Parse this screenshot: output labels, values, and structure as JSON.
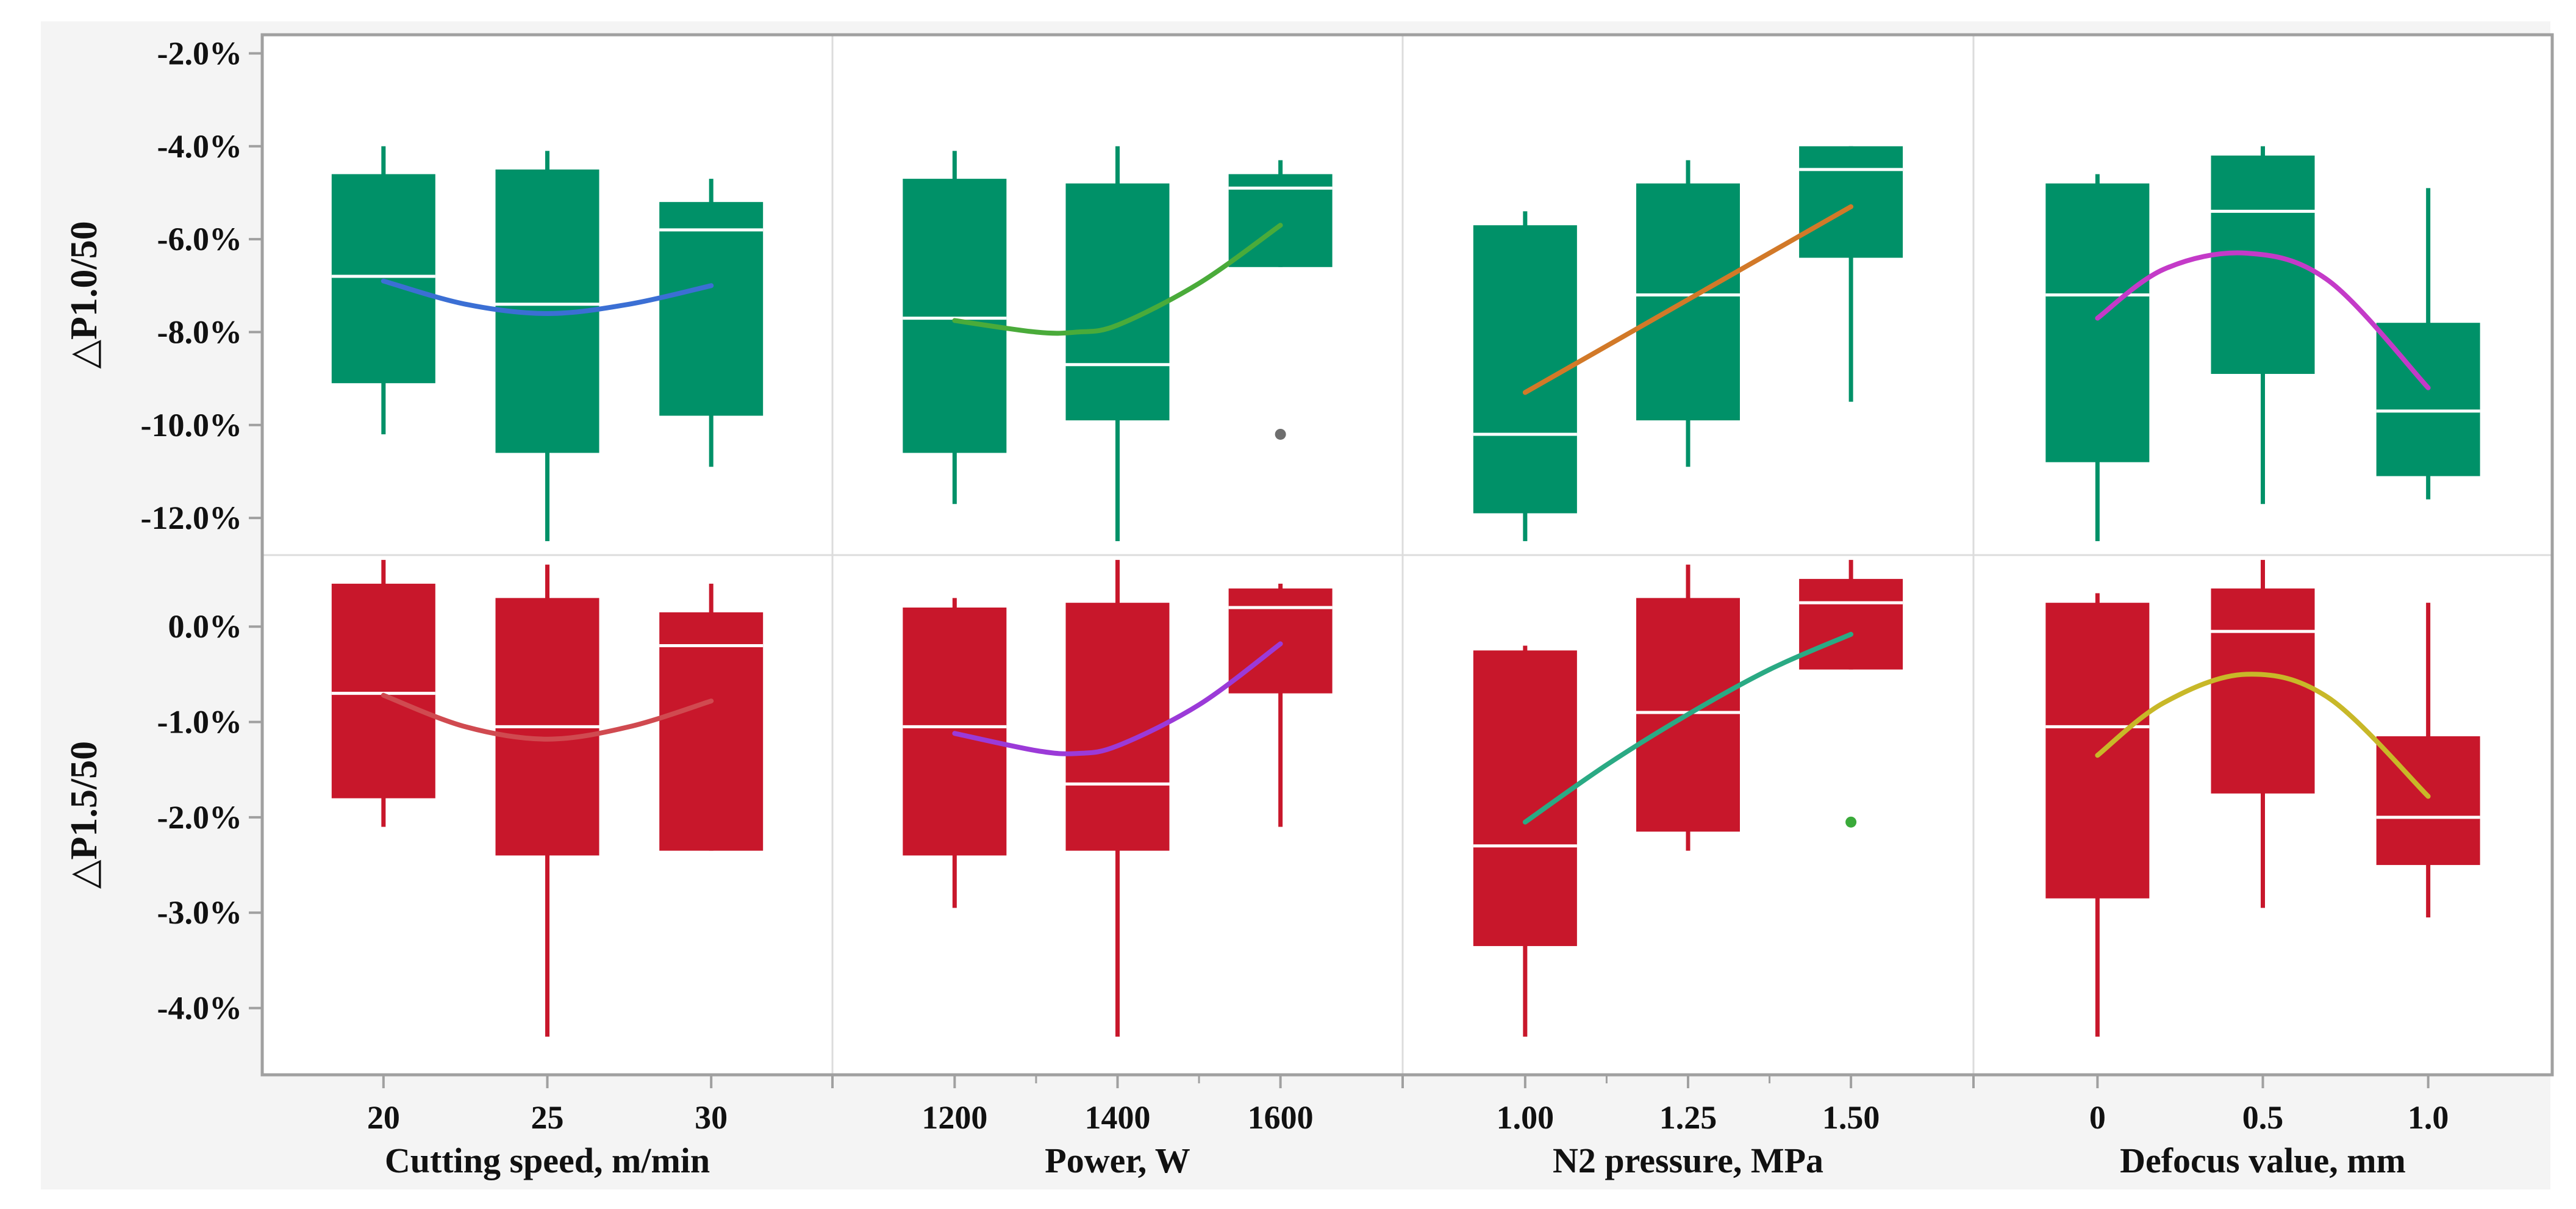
{
  "chart_data": {
    "type": "box",
    "title": "",
    "grid": false,
    "legend": "none",
    "colors": {
      "frame": "#a0a0a0",
      "divider": "#dcdcdc",
      "background_outer": "#f4f4f4",
      "background_plot": "#ffffff",
      "median": "#ffffff",
      "outlier_row1": "#6e6e6e",
      "outlier_row2": "#3aaa3a"
    },
    "rows": [
      {
        "ylabel": "△P1.0/50",
        "ylim": [
          -12.8,
          -1.6
        ],
        "yticks": [
          -2.0,
          -4.0,
          -6.0,
          -8.0,
          -10.0,
          -12.0
        ],
        "ytick_labels": [
          "-2.0%",
          "-4.0%",
          "-6.0%",
          "-8.0%",
          "-10.0%",
          "-12.0%"
        ],
        "box_color": "#009168"
      },
      {
        "ylabel": "△P1.5/50",
        "ylim": [
          -4.7,
          0.75
        ],
        "yticks": [
          0.0,
          -1.0,
          -2.0,
          -3.0,
          -4.0
        ],
        "ytick_labels": [
          "0.0%",
          "-1.0%",
          "-2.0%",
          "-3.0%",
          "-4.0%"
        ],
        "box_color": "#c8172b"
      }
    ],
    "columns": [
      {
        "xlabel": "Cutting speed, m/min",
        "categories": [
          "20",
          "25",
          "30"
        ],
        "x": [
          20,
          25,
          30
        ],
        "xlim": [
          16.3,
          33.7
        ],
        "minor_ticks": []
      },
      {
        "xlabel": "Power, W",
        "categories": [
          "1200",
          "1400",
          "1600"
        ],
        "x": [
          1200,
          1400,
          1600
        ],
        "xlim": [
          1050,
          1750
        ],
        "minor_ticks": [
          1300,
          1500
        ]
      },
      {
        "xlabel": "N2 pressure, MPa",
        "categories": [
          "1.00",
          "1.25",
          "1.50"
        ],
        "x": [
          1.0,
          1.25,
          1.5
        ],
        "xlim": [
          0.812,
          1.688
        ],
        "minor_ticks": [
          1.125,
          1.375
        ]
      },
      {
        "xlabel": "Defocus value, mm",
        "categories": [
          "0",
          "0.5",
          "1.0"
        ],
        "x": [
          0.0,
          0.5,
          1.0
        ],
        "xlim": [
          -0.375,
          1.375
        ],
        "minor_ticks": []
      }
    ],
    "panels": [
      {
        "row": 0,
        "col": 0,
        "trend_color": "#3b6fd4",
        "boxes": [
          {
            "x": 20,
            "min": -10.2,
            "q1": -9.1,
            "median": -6.8,
            "q3": -4.6,
            "max": -4.0
          },
          {
            "x": 25,
            "min": -12.5,
            "q1": -10.6,
            "median": -7.4,
            "q3": -4.5,
            "max": -4.1
          },
          {
            "x": 30,
            "min": -10.9,
            "q1": -9.8,
            "median": -5.8,
            "q3": -5.2,
            "max": -4.7
          }
        ],
        "trend": [
          [
            20,
            -6.9
          ],
          [
            22.5,
            -7.4
          ],
          [
            25,
            -7.6
          ],
          [
            27.5,
            -7.4
          ],
          [
            30,
            -7.0
          ]
        ],
        "outliers": []
      },
      {
        "row": 0,
        "col": 1,
        "trend_color": "#4aab3a",
        "boxes": [
          {
            "x": 1200,
            "min": -11.7,
            "q1": -10.6,
            "median": -7.7,
            "q3": -4.7,
            "max": -4.1
          },
          {
            "x": 1400,
            "min": -12.5,
            "q1": -9.9,
            "median": -8.7,
            "q3": -4.8,
            "max": -4.0
          },
          {
            "x": 1600,
            "min": -6.6,
            "q1": -6.6,
            "median": -4.9,
            "q3": -4.6,
            "max": -4.3
          }
        ],
        "trend": [
          [
            1200,
            -7.75
          ],
          [
            1300,
            -8.0
          ],
          [
            1350,
            -8.0
          ],
          [
            1400,
            -7.85
          ],
          [
            1500,
            -6.95
          ],
          [
            1600,
            -5.7
          ]
        ],
        "outliers": [
          [
            1600,
            -10.2
          ]
        ]
      },
      {
        "row": 0,
        "col": 2,
        "trend_color": "#d27928",
        "boxes": [
          {
            "x": 1.0,
            "min": -12.5,
            "q1": -11.9,
            "median": -10.2,
            "q3": -5.7,
            "max": -5.4
          },
          {
            "x": 1.25,
            "min": -10.9,
            "q1": -9.9,
            "median": -7.2,
            "q3": -4.8,
            "max": -4.3
          },
          {
            "x": 1.5,
            "min": -9.5,
            "q1": -6.4,
            "median": -4.5,
            "q3": -4.0,
            "max": -4.0
          }
        ],
        "trend": [
          [
            1.0,
            -9.3
          ],
          [
            1.5,
            -5.3
          ]
        ],
        "outliers": []
      },
      {
        "row": 0,
        "col": 3,
        "trend_color": "#c43ac8",
        "boxes": [
          {
            "x": 0.0,
            "min": -12.5,
            "q1": -10.8,
            "median": -7.2,
            "q3": -4.8,
            "max": -4.6
          },
          {
            "x": 0.5,
            "min": -11.7,
            "q1": -8.9,
            "median": -5.4,
            "q3": -4.2,
            "max": -4.0
          },
          {
            "x": 1.0,
            "min": -11.6,
            "q1": -11.1,
            "median": -9.7,
            "q3": -7.8,
            "max": -4.9
          }
        ],
        "trend": [
          [
            0.0,
            -7.7
          ],
          [
            0.2,
            -6.65
          ],
          [
            0.45,
            -6.3
          ],
          [
            0.7,
            -6.9
          ],
          [
            1.0,
            -9.2
          ]
        ],
        "outliers": []
      },
      {
        "row": 1,
        "col": 0,
        "trend_color": "#d04a50",
        "boxes": [
          {
            "x": 20,
            "min": -2.1,
            "q1": -1.8,
            "median": -0.7,
            "q3": 0.45,
            "max": 0.7
          },
          {
            "x": 25,
            "min": -4.3,
            "q1": -2.4,
            "median": -1.05,
            "q3": 0.3,
            "max": 0.65
          },
          {
            "x": 30,
            "min": -2.35,
            "q1": -2.35,
            "median": -0.2,
            "q3": 0.15,
            "max": 0.45
          }
        ],
        "trend": [
          [
            20,
            -0.72
          ],
          [
            22.5,
            -1.05
          ],
          [
            25,
            -1.18
          ],
          [
            27.5,
            -1.05
          ],
          [
            30,
            -0.78
          ]
        ],
        "outliers": []
      },
      {
        "row": 1,
        "col": 1,
        "trend_color": "#9b3ad8",
        "boxes": [
          {
            "x": 1200,
            "min": -2.95,
            "q1": -2.4,
            "median": -1.05,
            "q3": 0.2,
            "max": 0.3
          },
          {
            "x": 1400,
            "min": -4.3,
            "q1": -2.35,
            "median": -1.65,
            "q3": 0.25,
            "max": 0.7
          },
          {
            "x": 1600,
            "min": -2.1,
            "q1": -0.7,
            "median": 0.2,
            "q3": 0.4,
            "max": 0.45
          }
        ],
        "trend": [
          [
            1200,
            -1.12
          ],
          [
            1300,
            -1.3
          ],
          [
            1350,
            -1.33
          ],
          [
            1400,
            -1.25
          ],
          [
            1500,
            -0.82
          ],
          [
            1600,
            -0.18
          ]
        ],
        "outliers": []
      },
      {
        "row": 1,
        "col": 2,
        "trend_color": "#2aaa84",
        "boxes": [
          {
            "x": 1.0,
            "min": -4.3,
            "q1": -3.35,
            "median": -2.3,
            "q3": -0.25,
            "max": -0.2
          },
          {
            "x": 1.25,
            "min": -2.35,
            "q1": -2.15,
            "median": -0.9,
            "q3": 0.3,
            "max": 0.65
          },
          {
            "x": 1.5,
            "min": -0.45,
            "q1": -0.45,
            "median": 0.25,
            "q3": 0.5,
            "max": 0.7
          }
        ],
        "trend": [
          [
            1.0,
            -2.05
          ],
          [
            1.125,
            -1.45
          ],
          [
            1.25,
            -0.92
          ],
          [
            1.375,
            -0.45
          ],
          [
            1.5,
            -0.08
          ]
        ],
        "outliers": [
          [
            1.5,
            -2.05
          ]
        ]
      },
      {
        "row": 1,
        "col": 3,
        "trend_color": "#c8b828",
        "boxes": [
          {
            "x": 0.0,
            "min": -4.3,
            "q1": -2.85,
            "median": -1.05,
            "q3": 0.25,
            "max": 0.35
          },
          {
            "x": 0.5,
            "min": -2.95,
            "q1": -1.75,
            "median": -0.05,
            "q3": 0.4,
            "max": 0.7
          },
          {
            "x": 1.0,
            "min": -3.05,
            "q1": -2.5,
            "median": -2.0,
            "q3": -1.15,
            "max": 0.25
          }
        ],
        "trend": [
          [
            0.0,
            -1.35
          ],
          [
            0.2,
            -0.8
          ],
          [
            0.45,
            -0.5
          ],
          [
            0.7,
            -0.75
          ],
          [
            1.0,
            -1.78
          ]
        ],
        "outliers": []
      }
    ]
  }
}
